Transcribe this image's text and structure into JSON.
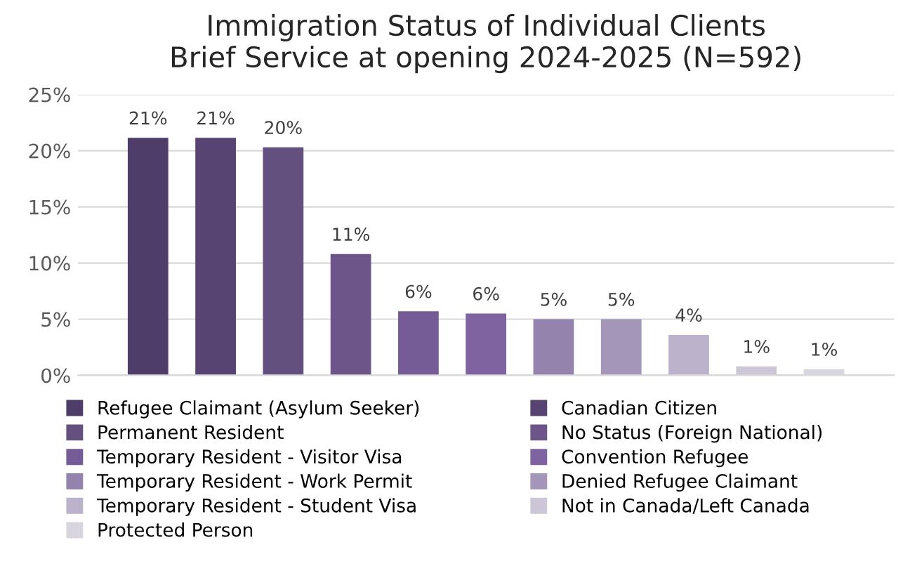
{
  "chart_data": {
    "type": "bar",
    "title": "Immigration Status of Individual Clients\nBrief Service at opening 2024-2025 (N=592)",
    "categories": [
      null
    ],
    "series": [
      {
        "name": "Refugee Claimant (Asylum Seeker)",
        "color": "#4e3d68",
        "values": [
          21.15
        ],
        "value_labels": [
          "21%"
        ]
      },
      {
        "name": "Canadian Citizen",
        "color": "#574472",
        "values": [
          21.15
        ],
        "value_labels": [
          "21%"
        ]
      },
      {
        "name": "Permanent Resident",
        "color": "#64507f",
        "values": [
          20.3
        ],
        "value_labels": [
          "20%"
        ]
      },
      {
        "name": "No Status (Foreign National)",
        "color": "#6d5589",
        "values": [
          10.8
        ],
        "value_labels": [
          "11%"
        ]
      },
      {
        "name": "Temporary Resident - Visitor Visa",
        "color": "#765c96",
        "values": [
          5.7
        ],
        "value_labels": [
          "6%"
        ]
      },
      {
        "name": "Convention Refugee",
        "color": "#7f63a0",
        "values": [
          5.5
        ],
        "value_labels": [
          "6%"
        ]
      },
      {
        "name": "Temporary Resident - Work Permit",
        "color": "#9484ad",
        "values": [
          5.0
        ],
        "value_labels": [
          "5%"
        ]
      },
      {
        "name": "Denied Refugee Claimant",
        "color": "#a496b8",
        "values": [
          5.0
        ],
        "value_labels": [
          "5%"
        ]
      },
      {
        "name": "Temporary Resident - Student Visa",
        "color": "#bcb2cb",
        "values": [
          3.6
        ],
        "value_labels": [
          "4%"
        ]
      },
      {
        "name": "Not in Canada/Left Canada",
        "color": "#ccc6d6",
        "values": [
          0.8
        ],
        "value_labels": [
          "1%"
        ]
      },
      {
        "name": "Protected Person",
        "color": "#d8d5de",
        "values": [
          0.55
        ],
        "value_labels": [
          "1%"
        ]
      }
    ],
    "ylim": [
      0,
      25
    ],
    "yticks": [
      {
        "value": 0,
        "label": "0%"
      },
      {
        "value": 5,
        "label": "5%"
      },
      {
        "value": 10,
        "label": "10%"
      },
      {
        "value": 15,
        "label": "15%"
      },
      {
        "value": 20,
        "label": "20%"
      },
      {
        "value": 25,
        "label": "25%"
      }
    ],
    "grid": "y",
    "legend": "bottom"
  }
}
